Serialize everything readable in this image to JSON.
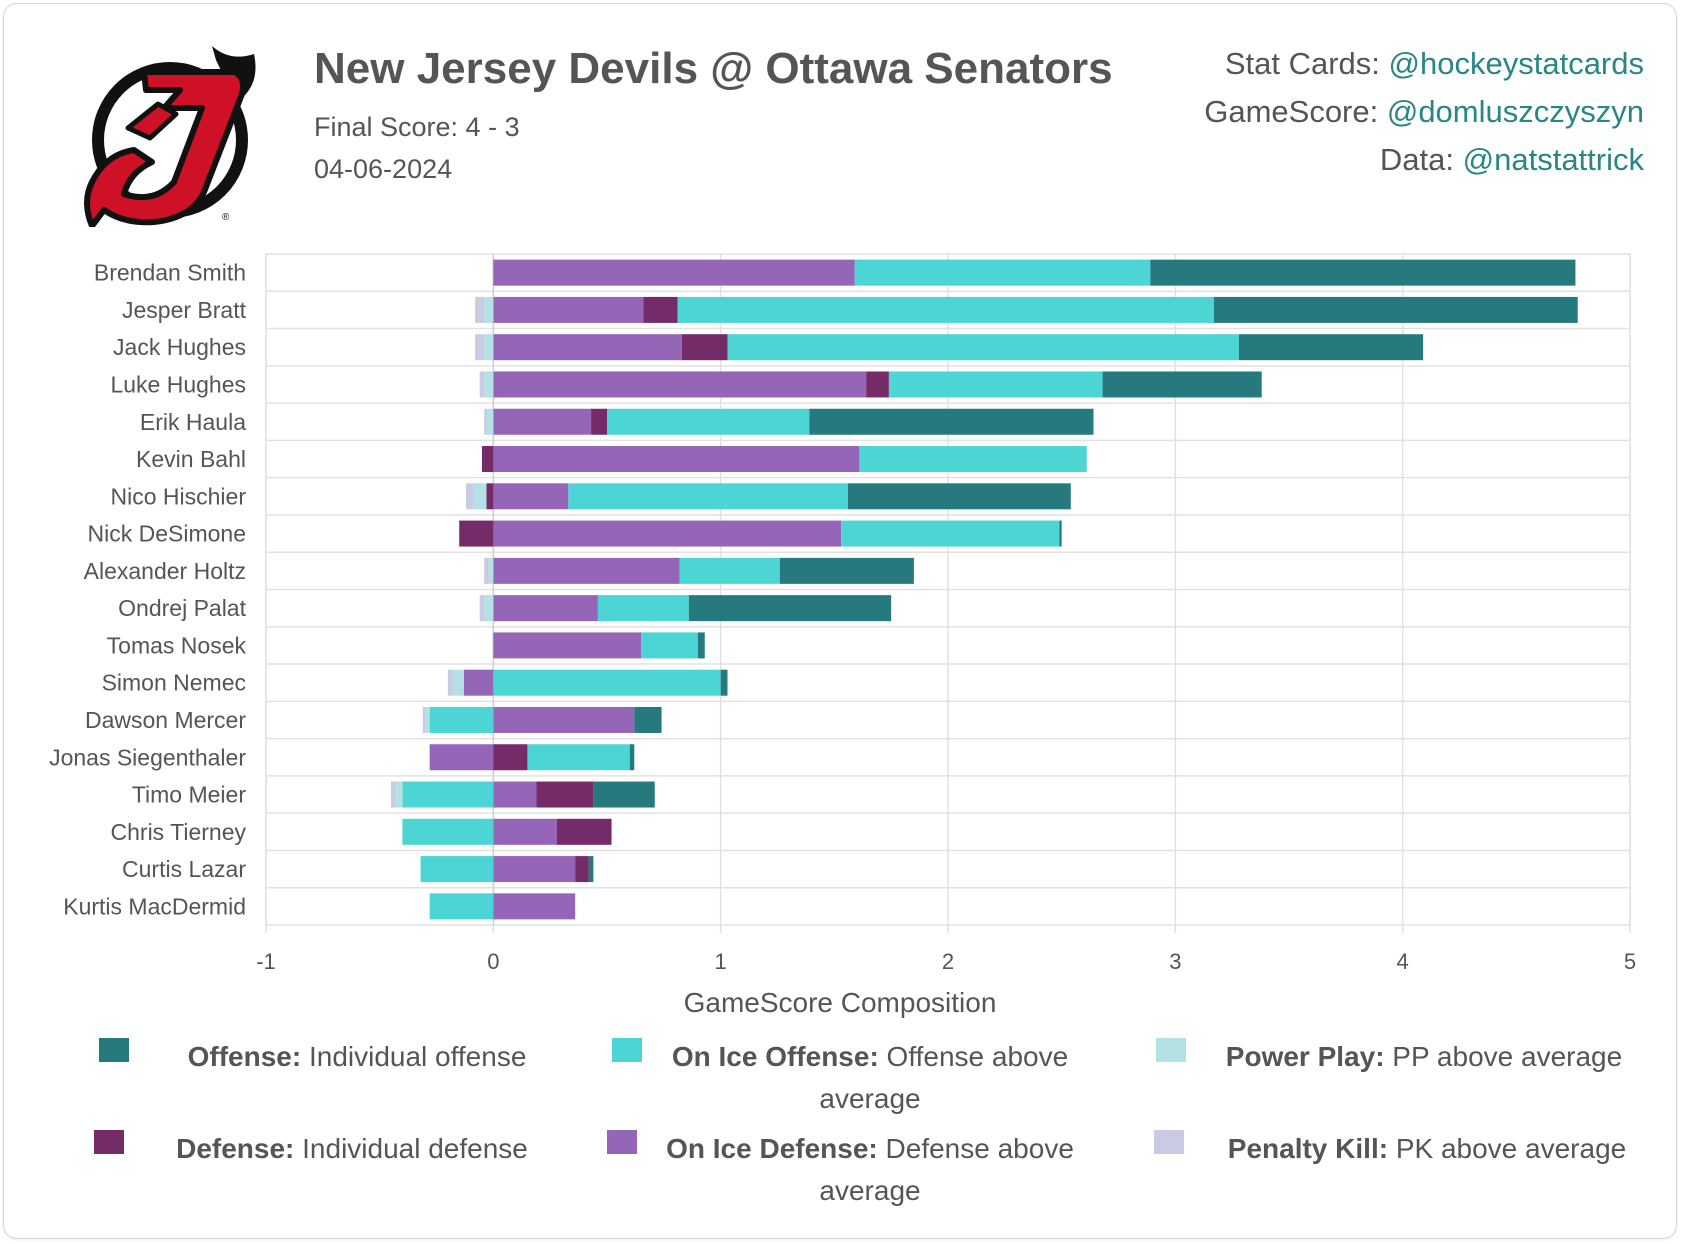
{
  "header": {
    "title": "New Jersey Devils @ Ottawa Senators",
    "final_score": "Final Score: 4 - 3",
    "date": "04-06-2024"
  },
  "credits": [
    {
      "label": "Stat Cards: ",
      "handle": "@hockeystatcards"
    },
    {
      "label": "GameScore: ",
      "handle": "@domluszczyszyn"
    },
    {
      "label": "Data: ",
      "handle": "@natstattrick"
    }
  ],
  "colors": {
    "offense": "#267a7d",
    "on_ice_offense": "#4dd4d4",
    "power_play": "#b4e1e3",
    "defense": "#742b68",
    "on_ice_defense": "#9566b8",
    "penalty_kill": "#c8cbe2",
    "logo_red": "#ce1126",
    "logo_black": "#111111"
  },
  "legend": [
    {
      "key": "offense",
      "bold": "Offense:",
      "text": " Individual offense"
    },
    {
      "key": "on_ice_offense",
      "bold": "On Ice Offense:",
      "text": " Offense above average"
    },
    {
      "key": "power_play",
      "bold": "Power Play:",
      "text": " PP above average"
    },
    {
      "key": "defense",
      "bold": "Defense:",
      "text": " Individual defense"
    },
    {
      "key": "on_ice_defense",
      "bold": "On Ice Defense:",
      "text": " Defense above average"
    },
    {
      "key": "penalty_kill",
      "bold": "Penalty Kill:",
      "text": " PK above average"
    }
  ],
  "chart_data": {
    "type": "bar",
    "orientation": "horizontal",
    "stacked": true,
    "xlabel": "GameScore Composition",
    "xlim": [
      -1,
      5
    ],
    "xticks": [
      -1,
      0,
      1,
      2,
      3,
      4,
      5
    ],
    "grid": true,
    "series_order": [
      "on_ice_defense",
      "defense",
      "on_ice_offense",
      "offense",
      "power_play",
      "penalty_kill"
    ],
    "series_names": {
      "on_ice_defense": "On Ice Defense",
      "defense": "Defense",
      "on_ice_offense": "On Ice Offense",
      "offense": "Offense",
      "power_play": "Power Play",
      "penalty_kill": "Penalty Kill"
    },
    "categories": [
      "Brendan Smith",
      "Jesper Bratt",
      "Jack Hughes",
      "Luke Hughes",
      "Erik Haula",
      "Kevin Bahl",
      "Nico Hischier",
      "Nick DeSimone",
      "Alexander Holtz",
      "Ondrej Palat",
      "Tomas Nosek",
      "Simon Nemec",
      "Dawson Mercer",
      "Jonas Siegenthaler",
      "Timo Meier",
      "Chris Tierney",
      "Curtis Lazar",
      "Kurtis MacDermid"
    ],
    "series": [
      {
        "name": "On Ice Defense",
        "key": "on_ice_defense",
        "values": [
          1.59,
          0.66,
          0.83,
          1.64,
          0.43,
          1.61,
          0.33,
          1.53,
          0.82,
          0.46,
          0.65,
          -0.13,
          0.62,
          -0.28,
          0.19,
          0.28,
          0.36,
          0.36
        ]
      },
      {
        "name": "Defense",
        "key": "defense",
        "values": [
          0,
          0.15,
          0.2,
          0.1,
          0.07,
          -0.05,
          -0.03,
          -0.15,
          0,
          0,
          0,
          0,
          0,
          0.15,
          0.25,
          0.24,
          0.06,
          0
        ]
      },
      {
        "name": "On Ice Offense",
        "key": "on_ice_offense",
        "values": [
          1.3,
          2.36,
          2.25,
          0.94,
          0.89,
          1.0,
          1.23,
          0.96,
          0.44,
          0.4,
          0.25,
          1.0,
          -0.28,
          0.45,
          -0.4,
          -0.4,
          -0.32,
          -0.28
        ]
      },
      {
        "name": "Offense",
        "key": "offense",
        "values": [
          1.87,
          1.6,
          0.81,
          0.7,
          1.25,
          0,
          0.98,
          0.01,
          0.59,
          0.89,
          0.03,
          0.03,
          0.12,
          0.02,
          0.27,
          0,
          0.02,
          0
        ]
      },
      {
        "name": "Power Play",
        "key": "power_play",
        "values": [
          0,
          -0.04,
          -0.04,
          -0.04,
          -0.03,
          0,
          -0.06,
          0,
          -0.02,
          -0.04,
          0,
          -0.05,
          -0.02,
          0,
          -0.03,
          0,
          0,
          0
        ]
      },
      {
        "name": "Penalty Kill",
        "key": "penalty_kill",
        "values": [
          0,
          -0.04,
          -0.04,
          -0.02,
          -0.01,
          0,
          -0.03,
          0,
          -0.02,
          -0.02,
          0,
          -0.02,
          -0.01,
          0,
          -0.02,
          0,
          0,
          0
        ]
      }
    ]
  }
}
